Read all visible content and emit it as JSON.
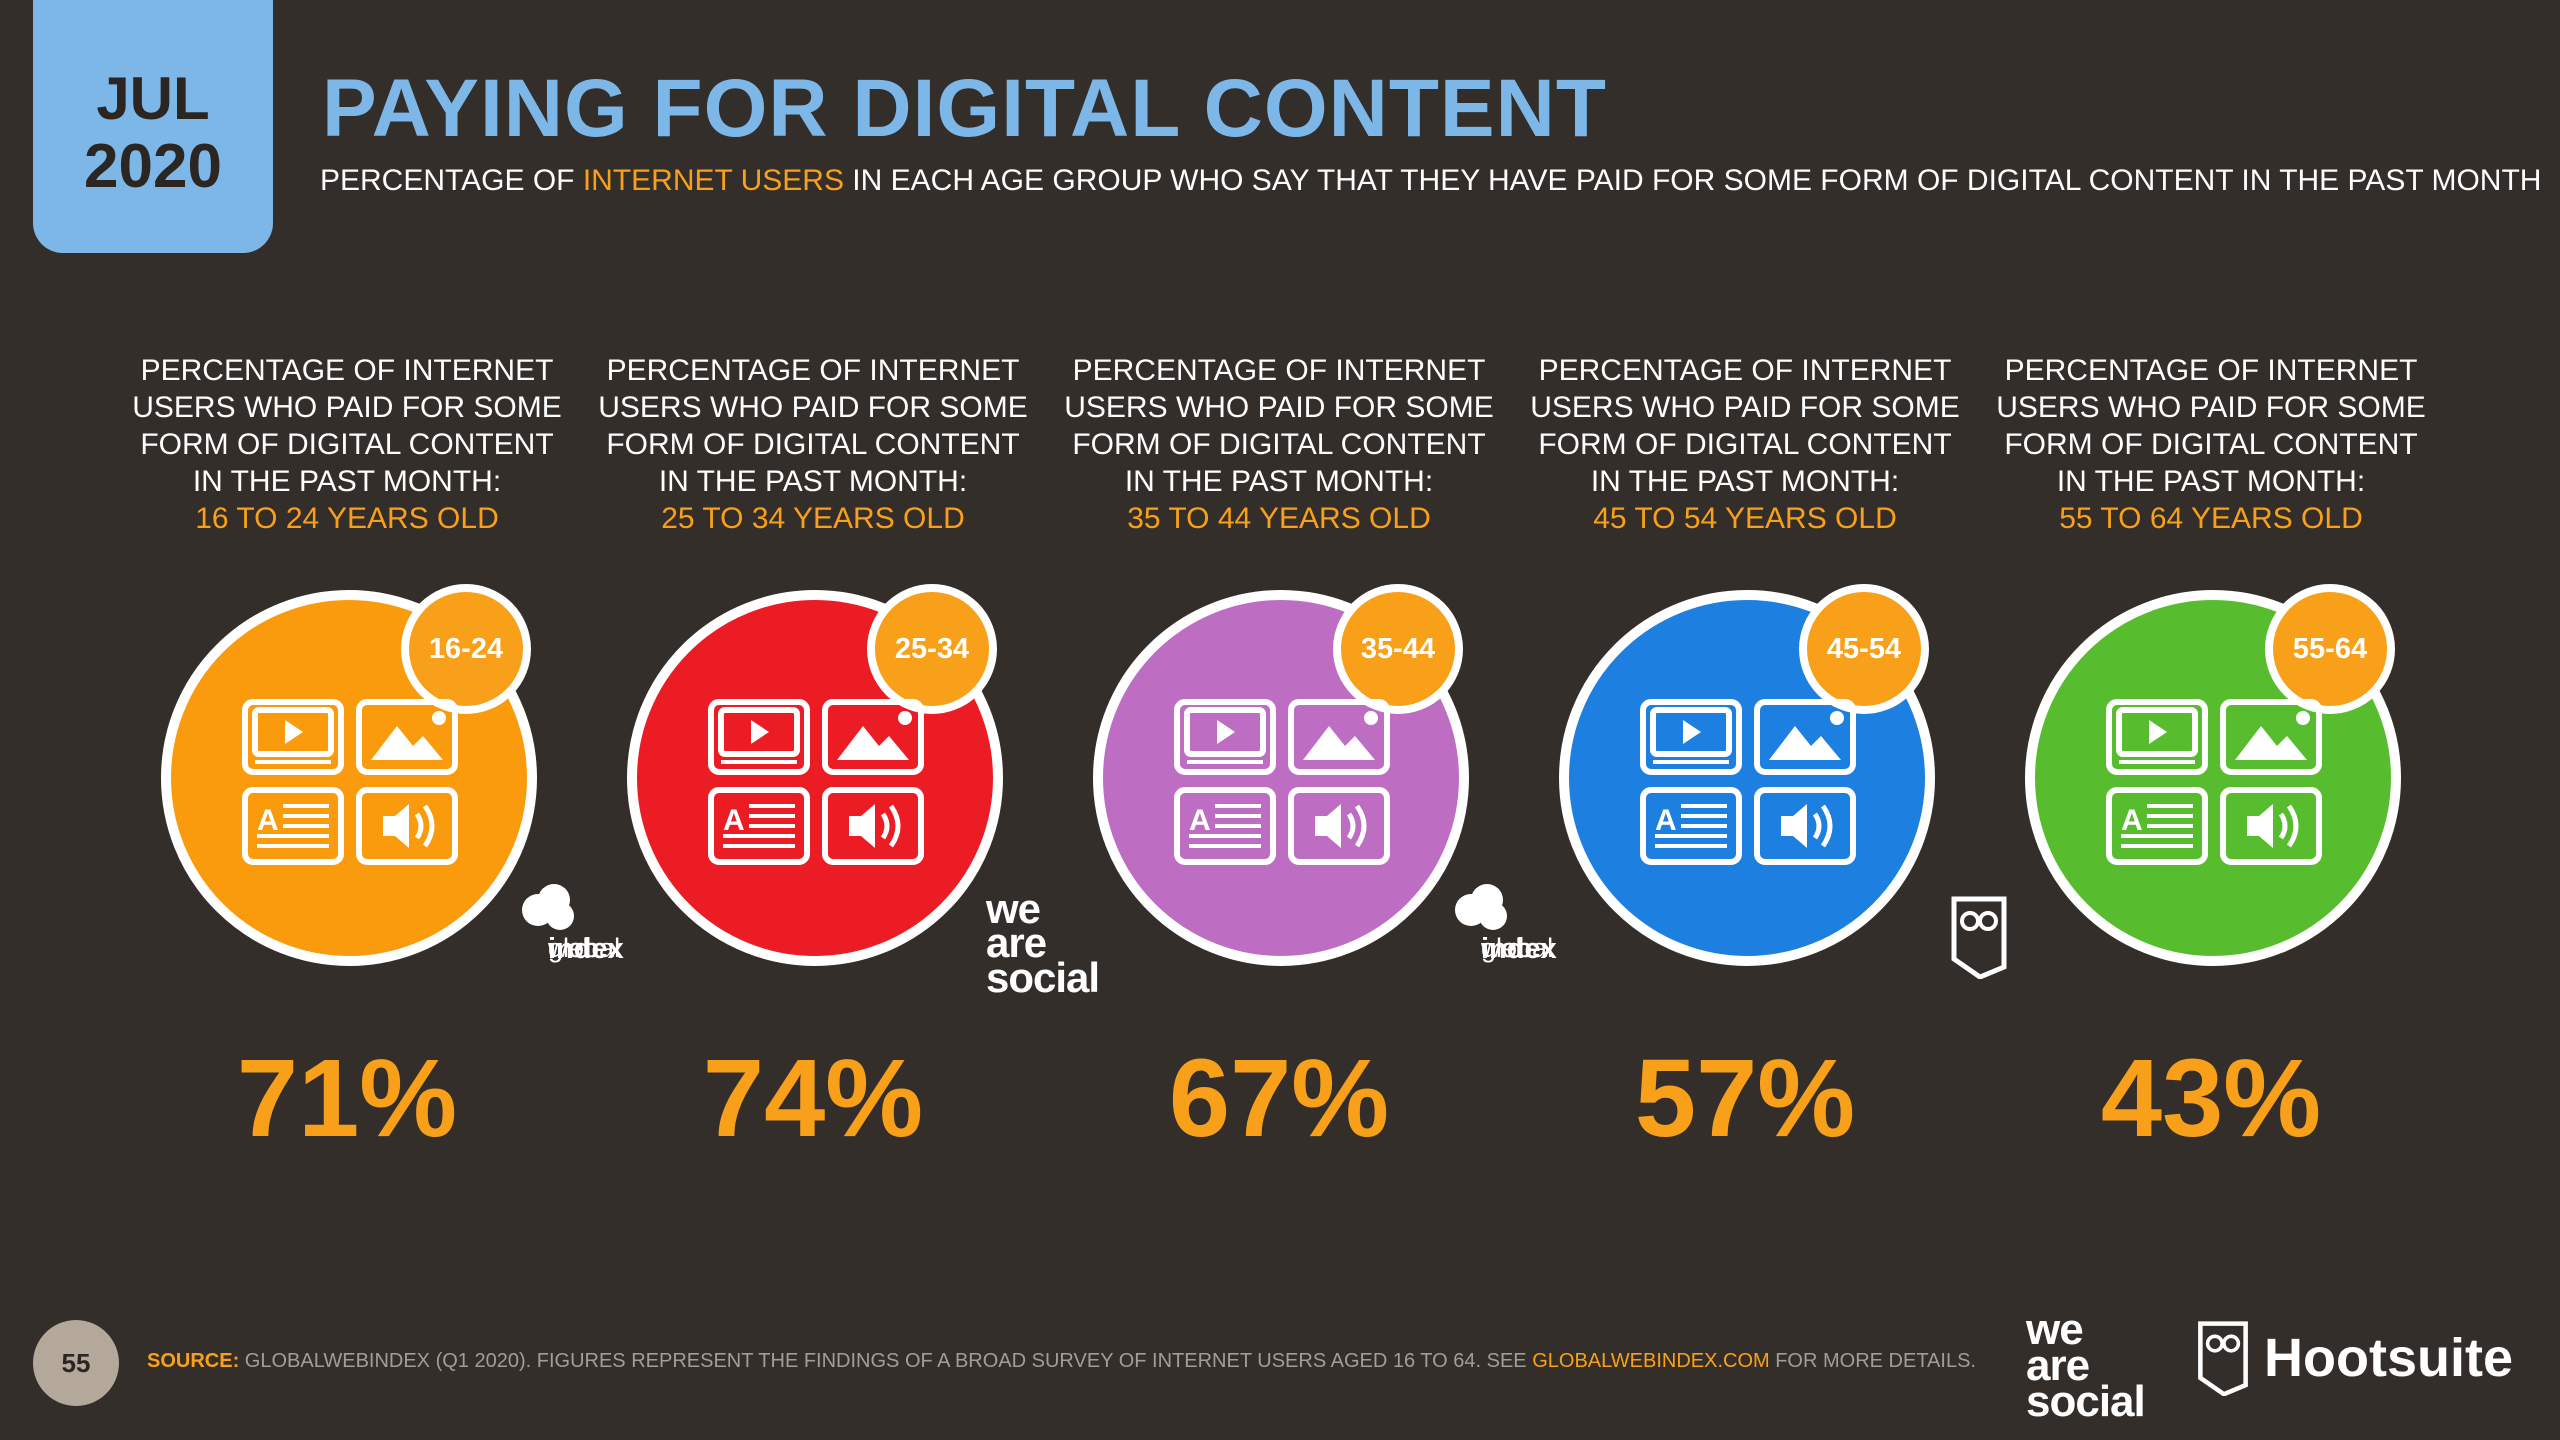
{
  "header": {
    "month": "JUL",
    "year": "2020",
    "title": "PAYING FOR DIGITAL CONTENT",
    "subtitle_pre": "PERCENTAGE OF ",
    "subtitle_highlight": "INTERNET USERS",
    "subtitle_post": " IN EACH AGE GROUP WHO SAY THAT THEY HAVE PAID FOR SOME FORM OF DIGITAL CONTENT IN THE PAST MONTH"
  },
  "panels": [
    {
      "line1": "PERCENTAGE OF INTERNET",
      "line2": "USERS WHO PAID FOR SOME",
      "line3": "FORM OF DIGITAL CONTENT",
      "line4": "IN THE PAST MONTH:",
      "age_label": "16 TO 24 YEARS OLD",
      "badge": "16-24",
      "value": "71%",
      "color": "#f99b0c"
    },
    {
      "line1": "PERCENTAGE OF INTERNET",
      "line2": "USERS WHO PAID FOR SOME",
      "line3": "FORM OF DIGITAL CONTENT",
      "line4": "IN THE PAST MONTH:",
      "age_label": "25 TO 34 YEARS OLD",
      "badge": "25-34",
      "value": "74%",
      "color": "#ec1c24"
    },
    {
      "line1": "PERCENTAGE OF INTERNET",
      "line2": "USERS WHO PAID FOR SOME",
      "line3": "FORM OF DIGITAL CONTENT",
      "line4": "IN THE PAST MONTH:",
      "age_label": "35 TO 44 YEARS OLD",
      "badge": "35-44",
      "value": "67%",
      "color": "#bd6ec3"
    },
    {
      "line1": "PERCENTAGE OF INTERNET",
      "line2": "USERS WHO PAID FOR SOME",
      "line3": "FORM OF DIGITAL CONTENT",
      "line4": "IN THE PAST MONTH:",
      "age_label": "45 TO 54 YEARS OLD",
      "badge": "45-54",
      "value": "57%",
      "color": "#1d7fe0"
    },
    {
      "line1": "PERCENTAGE OF INTERNET",
      "line2": "USERS WHO PAID FOR SOME",
      "line3": "FORM OF DIGITAL CONTENT",
      "line4": "IN THE PAST MONTH:",
      "age_label": "55 TO 64 YEARS OLD",
      "badge": "55-64",
      "value": "43%",
      "color": "#58bd2e"
    }
  ],
  "logos": {
    "gwi_1": "global",
    "gwi_2": "web",
    "gwi_3": "index",
    "was_1": "we",
    "was_2": "are",
    "was_3": "social"
  },
  "footer": {
    "page_number": "55",
    "source_label": "SOURCE:",
    "source_text": " GLOBALWEBINDEX (Q1 2020). FIGURES REPRESENT THE FINDINGS OF A BROAD SURVEY OF INTERNET USERS AGED 16 TO 64. SEE ",
    "source_link": "GLOBALWEBINDEX.COM",
    "source_end": " FOR MORE DETAILS.",
    "brand_was_1": "we",
    "brand_was_2": "are",
    "brand_was_3": "social",
    "brand_hootsuite": "Hootsuite"
  }
}
